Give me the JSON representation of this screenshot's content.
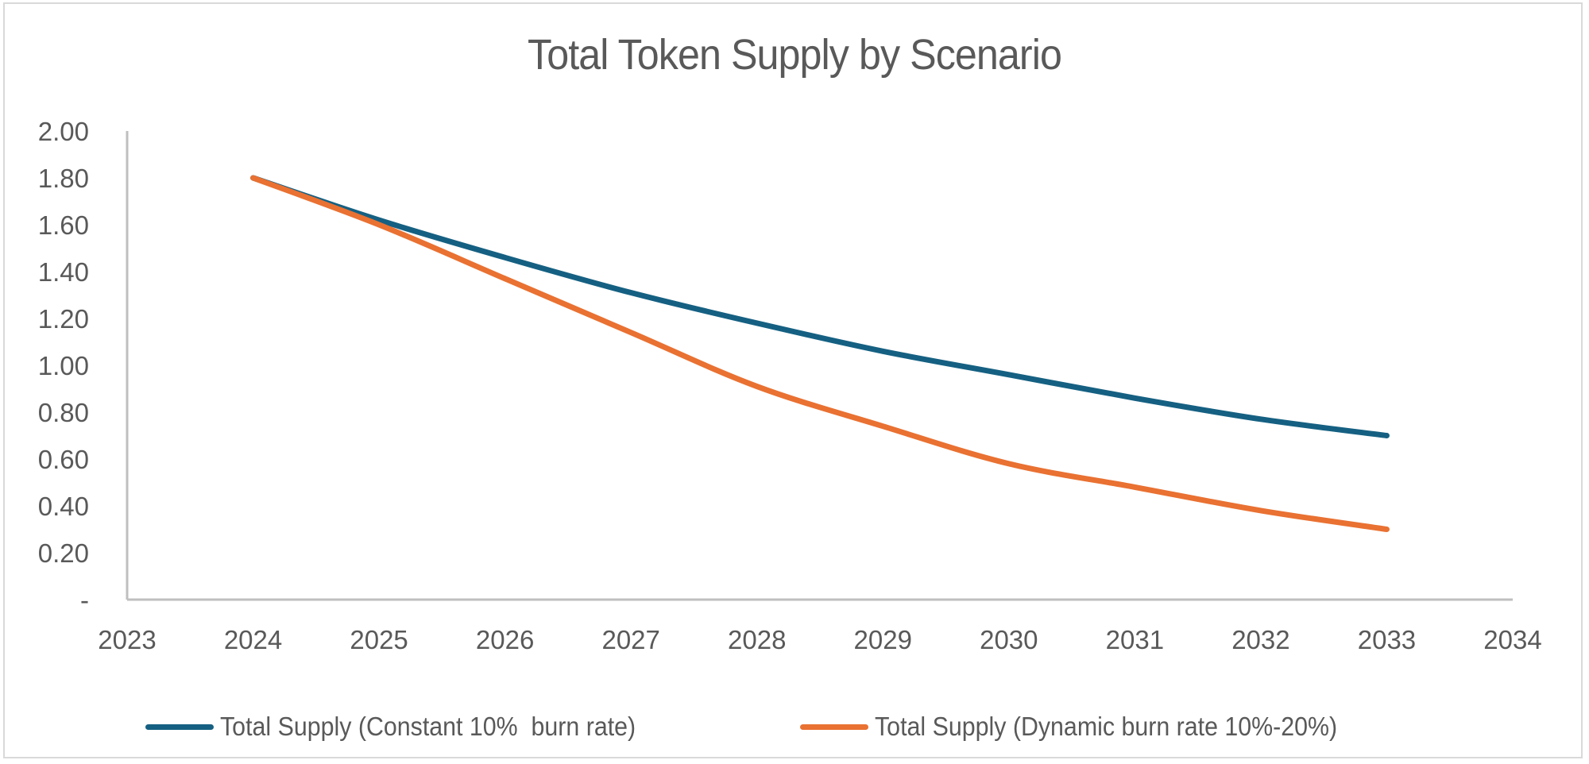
{
  "chart_data": {
    "type": "line",
    "title": "Total Token Supply by Scenario",
    "xlabel": "",
    "ylabel": "",
    "x": [
      2024,
      2025,
      2026,
      2027,
      2028,
      2029,
      2030,
      2031,
      2032,
      2033
    ],
    "xlim": [
      2023,
      2034
    ],
    "x_ticks": [
      "2023",
      "2024",
      "2025",
      "2026",
      "2027",
      "2028",
      "2029",
      "2030",
      "2031",
      "2032",
      "2033",
      "2034"
    ],
    "ylim": [
      0,
      2.0
    ],
    "y_ticks": [
      "-",
      "0.20",
      "0.40",
      "0.60",
      "0.80",
      "1.00",
      "1.20",
      "1.40",
      "1.60",
      "1.80",
      "2.00"
    ],
    "y_tick_values": [
      0,
      0.2,
      0.4,
      0.6,
      0.8,
      1.0,
      1.2,
      1.4,
      1.6,
      1.8,
      2.0
    ],
    "grid": false,
    "legend_position": "bottom",
    "series": [
      {
        "name": "Total Supply (Constant 10%  burn rate)",
        "color": "#156082",
        "values": [
          1.8,
          1.62,
          1.46,
          1.31,
          1.18,
          1.06,
          0.96,
          0.86,
          0.77,
          0.7
        ]
      },
      {
        "name": "Total Supply (Dynamic burn rate 10%-20%)",
        "color": "#E97132",
        "values": [
          1.8,
          1.6,
          1.37,
          1.14,
          0.91,
          0.74,
          0.58,
          0.48,
          0.38,
          0.3
        ]
      }
    ]
  },
  "colors": {
    "text": "#595959",
    "axis": "#bfbfbf",
    "border": "#d9d9d9"
  }
}
